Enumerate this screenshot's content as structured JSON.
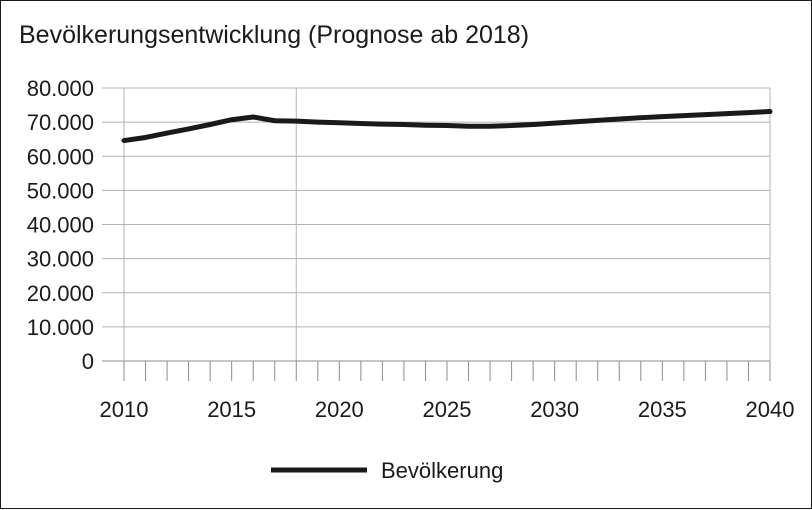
{
  "chart_data": {
    "type": "line",
    "title": "Bevölkerungsentwicklung (Prognose ab 2018)",
    "xlabel": "",
    "ylabel": "",
    "xlim": [
      2010,
      2040
    ],
    "ylim": [
      0,
      80000
    ],
    "x_ticks": [
      2010,
      2015,
      2020,
      2025,
      2030,
      2035,
      2040
    ],
    "x_tick_labels": [
      "2010",
      "2015",
      "2020",
      "2025",
      "2030",
      "2035",
      "2040"
    ],
    "y_ticks": [
      0,
      10000,
      20000,
      30000,
      40000,
      50000,
      60000,
      70000,
      80000
    ],
    "y_tick_labels": [
      "0",
      "10.000",
      "20.000",
      "30.000",
      "40.000",
      "50.000",
      "60.000",
      "70.000",
      "80.000"
    ],
    "forecast_start": 2018,
    "grid": "horizontal",
    "legend_position": "bottom",
    "series": [
      {
        "name": "Bevölkerung",
        "color": "#1a1a1a",
        "x": [
          2010,
          2011,
          2012,
          2013,
          2014,
          2015,
          2016,
          2017,
          2018,
          2019,
          2020,
          2021,
          2022,
          2023,
          2024,
          2025,
          2026,
          2027,
          2028,
          2029,
          2030,
          2031,
          2032,
          2033,
          2034,
          2035,
          2036,
          2037,
          2038,
          2039,
          2040
        ],
        "values": [
          64600,
          65500,
          66800,
          68000,
          69300,
          70700,
          71500,
          70400,
          70300,
          70000,
          69800,
          69600,
          69400,
          69300,
          69100,
          69000,
          68800,
          68800,
          69000,
          69300,
          69700,
          70100,
          70500,
          70900,
          71300,
          71600,
          71900,
          72200,
          72500,
          72800,
          73100
        ]
      }
    ]
  }
}
